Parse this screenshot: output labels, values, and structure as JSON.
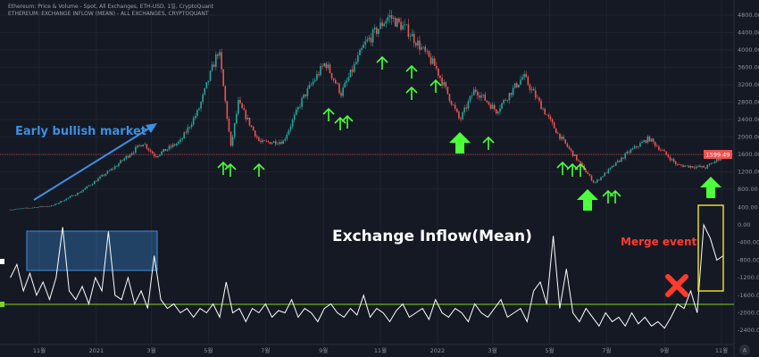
{
  "chart_data": {
    "type": "candlestick+line",
    "legend": [
      "Ethereum: Price & Volume - Spot, All Exchanges, ETH-USD, 1일, CryptoQuant",
      "ETHEREUM: EXCHANGE INFLOW (MEAN) - ALL EXCHANGES, CRYPTOQUANT"
    ],
    "x_ticks": [
      "11월",
      "2021",
      "3월",
      "5월",
      "7월",
      "9월",
      "11월",
      "2022",
      "3월",
      "5월",
      "7월",
      "9월",
      "11월"
    ],
    "x_tick_dates": [
      "2020-11-01",
      "2021-01-01",
      "2021-03-01",
      "2021-05-01",
      "2021-07-01",
      "2021-09-01",
      "2021-11-01",
      "2022-01-01",
      "2022-03-01",
      "2022-05-01",
      "2022-07-01",
      "2022-09-01",
      "2022-11-01"
    ],
    "price_axis": {
      "ticks": [
        "4800.00",
        "4400.00",
        "4000.00",
        "3600.00",
        "3200.00",
        "2800.00",
        "2400.00",
        "2000.00",
        "1600.00",
        "1200.00",
        "800.00"
      ],
      "range": [
        800,
        4800
      ]
    },
    "inflow_axis": {
      "ticks": [
        "400.00",
        "0.00",
        "-400.00",
        "-800.00",
        "-1200.00",
        "-1600.00",
        "-2000.00",
        "-2400.00"
      ],
      "range": [
        -2400,
        400
      ]
    },
    "last_price_label": "1599.49",
    "price": [
      [
        "2020-10-01",
        330
      ],
      [
        "2020-11-15",
        420
      ],
      [
        "2020-12-15",
        740
      ],
      [
        "2021-01-20",
        1300
      ],
      [
        "2021-02-20",
        1870
      ],
      [
        "2021-03-05",
        1560
      ],
      [
        "2021-04-01",
        1900
      ],
      [
        "2021-04-20",
        2600
      ],
      [
        "2021-05-12",
        4020
      ],
      [
        "2021-05-25",
        1760
      ],
      [
        "2021-06-02",
        2790
      ],
      [
        "2021-06-25",
        1870
      ],
      [
        "2021-07-20",
        1900
      ],
      [
        "2021-08-10",
        2890
      ],
      [
        "2021-09-03",
        3710
      ],
      [
        "2021-09-20",
        3000
      ],
      [
        "2021-10-15",
        4120
      ],
      [
        "2021-11-10",
        4780
      ],
      [
        "2021-12-01",
        4430
      ],
      [
        "2021-12-30",
        3610
      ],
      [
        "2022-01-25",
        2380
      ],
      [
        "2022-02-10",
        3100
      ],
      [
        "2022-03-05",
        2600
      ],
      [
        "2022-04-03",
        3400
      ],
      [
        "2022-05-10",
        2070
      ],
      [
        "2022-06-18",
        940
      ],
      [
        "2022-07-25",
        1660
      ],
      [
        "2022-08-15",
        1970
      ],
      [
        "2022-09-15",
        1350
      ],
      [
        "2022-10-15",
        1300
      ],
      [
        "2022-11-05",
        1600
      ]
    ],
    "inflow_mean": {
      "start": "2020-10-01",
      "interval": "weekly",
      "values": [
        -1200,
        -900,
        -1500,
        -1100,
        -1600,
        -1300,
        -1700,
        -1200,
        -50,
        -1500,
        -1700,
        -1400,
        -1800,
        -1200,
        -1500,
        -150,
        -1600,
        -1700,
        -1200,
        -1800,
        -1500,
        -1900,
        -700,
        -1700,
        -1900,
        -1800,
        -2000,
        -1900,
        -2100,
        -1900,
        -2000,
        -1800,
        -2100,
        -1300,
        -2000,
        -1900,
        -2200,
        -1900,
        -2000,
        -1800,
        -2100,
        -1950,
        -2000,
        -1700,
        -2100,
        -1900,
        -2000,
        -2200,
        -1900,
        -1800,
        -2000,
        -2100,
        -1900,
        -2050,
        -1600,
        -2100,
        -1900,
        -2000,
        -2200,
        -1950,
        -1800,
        -2100,
        -2000,
        -1900,
        -2150,
        -1700,
        -2000,
        -2100,
        -1900,
        -2000,
        -2200,
        -1800,
        -2000,
        -2100,
        -1900,
        -1700,
        -2100,
        -2000,
        -1900,
        -2200,
        -1500,
        -1300,
        -1800,
        -250,
        -1900,
        -1000,
        -2000,
        -2200,
        -1900,
        -2100,
        -2300,
        -2000,
        -2200,
        -2100,
        -2300,
        -2000,
        -2250,
        -2100,
        -2300,
        -2200,
        -2350,
        -2100,
        -1800,
        -1900,
        -1500,
        -2000,
        0,
        -300,
        -800,
        -700
      ]
    },
    "colors": {
      "up": "#26a69a",
      "down": "#ef5350",
      "inflow": "#ffffff",
      "price_line": "#ef5350",
      "support_line": "#7ed321"
    }
  },
  "annotations": {
    "early_bullish": "Early bullish market",
    "inflow_title": "Exchange Inflow(Mean)",
    "merge_event": "Merge event",
    "colors": {
      "blue": "#3d8fe0",
      "green_arrow": "#4cff3a",
      "red": "#ff3b30",
      "yellow": "#e6d92e"
    }
  },
  "footer": {
    "auto_button": "A"
  }
}
